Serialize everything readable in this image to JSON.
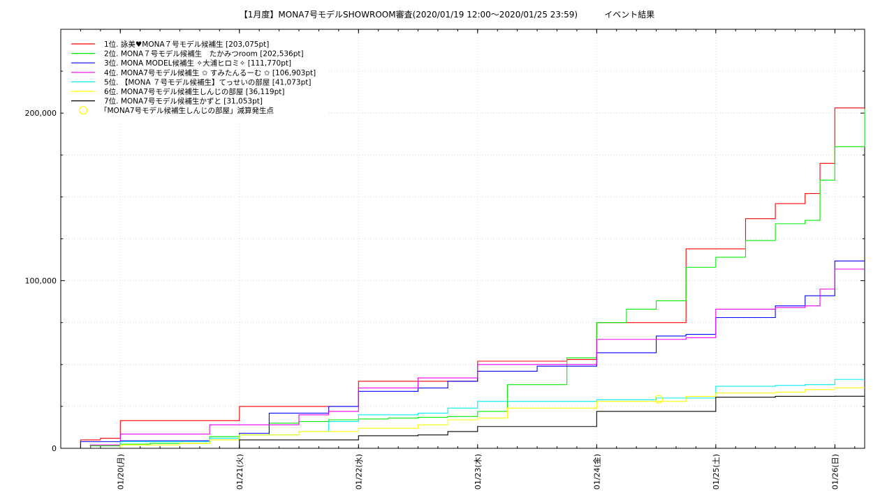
{
  "chart_data": {
    "type": "line",
    "title": "【1月度】MONA7号モデルSHOWROOM審査(2020/01/19 12:00〜2020/01/25 23:59)          イベント結果",
    "xlabel": "",
    "ylabel": "",
    "x_range": [
      "2020-01-19 12:00",
      "2020-01-26 06:00"
    ],
    "ylim": [
      0,
      250000
    ],
    "y_ticks": [
      0,
      100000,
      200000
    ],
    "y_tick_labels": [
      "0",
      "100,000",
      "200,000"
    ],
    "x_ticks": [
      "2020-01-20",
      "2020-01-21",
      "2020-01-22",
      "2020-01-23",
      "2020-01-24",
      "2020-01-25",
      "2020-01-26"
    ],
    "x_tick_labels": [
      "01/20(月)",
      "01/21(火)",
      "01/22(水)",
      "01/23(木)",
      "01/24(金)",
      "01/25(土)",
      "01/26(日)"
    ],
    "grid": true,
    "legend_position": "top-left",
    "series": [
      {
        "name": "1位. 詠美♥MONA７号モデル候補生 [203,075pt]",
        "color": "#ff0000",
        "x": [
          "2020-01-19 12:00",
          "2020-01-19 16:00",
          "2020-01-19 20:00",
          "2020-01-20 00:00",
          "2020-01-20 06:00",
          "2020-01-20 12:00",
          "2020-01-20 18:00",
          "2020-01-21 00:00",
          "2020-01-21 06:00",
          "2020-01-21 12:00",
          "2020-01-21 18:00",
          "2020-01-22 00:00",
          "2020-01-22 06:00",
          "2020-01-22 12:00",
          "2020-01-22 18:00",
          "2020-01-23 00:00",
          "2020-01-23 06:00",
          "2020-01-23 12:00",
          "2020-01-23 18:00",
          "2020-01-24 00:00",
          "2020-01-24 06:00",
          "2020-01-24 12:00",
          "2020-01-24 18:00",
          "2020-01-25 00:00",
          "2020-01-25 06:00",
          "2020-01-25 12:00",
          "2020-01-25 18:00",
          "2020-01-25 21:00",
          "2020-01-25 23:59",
          "2020-01-26 06:00"
        ],
        "y": [
          0,
          5000,
          6000,
          16500,
          16500,
          16500,
          16500,
          25000,
          25000,
          25000,
          25000,
          40000,
          40000,
          40000,
          40000,
          52000,
          52000,
          52000,
          53000,
          75000,
          75000,
          75000,
          119000,
          119000,
          137000,
          146000,
          152000,
          170000,
          203075,
          203075
        ]
      },
      {
        "name": "2位. MONA７号モデル候補生　たかみつroom [202,536pt]",
        "color": "#00ee00",
        "x": [
          "2020-01-19 12:00",
          "2020-01-19 18:00",
          "2020-01-20 00:00",
          "2020-01-20 06:00",
          "2020-01-20 12:00",
          "2020-01-20 18:00",
          "2020-01-21 00:00",
          "2020-01-21 06:00",
          "2020-01-21 12:00",
          "2020-01-21 18:00",
          "2020-01-22 00:00",
          "2020-01-22 06:00",
          "2020-01-22 12:00",
          "2020-01-22 18:00",
          "2020-01-23 00:00",
          "2020-01-23 06:00",
          "2020-01-23 12:00",
          "2020-01-23 18:00",
          "2020-01-24 00:00",
          "2020-01-24 06:00",
          "2020-01-24 12:00",
          "2020-01-24 18:00",
          "2020-01-25 00:00",
          "2020-01-25 06:00",
          "2020-01-25 12:00",
          "2020-01-25 18:00",
          "2020-01-25 21:00",
          "2020-01-25 23:59",
          "2020-01-26 06:00"
        ],
        "y": [
          0,
          1500,
          2500,
          3000,
          3000,
          7000,
          8000,
          15000,
          16000,
          17000,
          17500,
          18000,
          18500,
          19000,
          22000,
          38000,
          38000,
          54000,
          75000,
          83000,
          88000,
          108000,
          114000,
          124000,
          134000,
          136000,
          160000,
          180000,
          202536
        ]
      },
      {
        "name": "3位. MONA MODEL候補生 ✧大浦ヒロミ✧ [111,770pt]",
        "color": "#0000ff",
        "x": [
          "2020-01-19 12:00",
          "2020-01-19 16:00",
          "2020-01-20 00:00",
          "2020-01-20 12:00",
          "2020-01-20 18:00",
          "2020-01-21 00:00",
          "2020-01-21 06:00",
          "2020-01-21 12:00",
          "2020-01-21 18:00",
          "2020-01-22 00:00",
          "2020-01-22 06:00",
          "2020-01-22 12:00",
          "2020-01-22 18:00",
          "2020-01-23 00:00",
          "2020-01-23 06:00",
          "2020-01-23 12:00",
          "2020-01-23 18:00",
          "2020-01-24 00:00",
          "2020-01-24 06:00",
          "2020-01-24 12:00",
          "2020-01-24 18:00",
          "2020-01-25 00:00",
          "2020-01-25 06:00",
          "2020-01-25 12:00",
          "2020-01-25 18:00",
          "2020-01-25 21:00",
          "2020-01-25 23:59",
          "2020-01-26 06:00"
        ],
        "y": [
          0,
          4000,
          4500,
          4500,
          5000,
          9000,
          21000,
          21000,
          25000,
          34000,
          34000,
          36000,
          40000,
          46000,
          46000,
          49000,
          49000,
          57000,
          57000,
          67000,
          68000,
          78000,
          78000,
          85000,
          91000,
          91000,
          111770,
          111770
        ]
      },
      {
        "name": "4位. MONA7号モデル候補生 ✩ すみたんるーむ ✩ [106,903pt]",
        "color": "#ee00ee",
        "x": [
          "2020-01-19 12:00",
          "2020-01-19 18:00",
          "2020-01-20 00:00",
          "2020-01-20 12:00",
          "2020-01-20 18:00",
          "2020-01-21 00:00",
          "2020-01-21 06:00",
          "2020-01-21 12:00",
          "2020-01-21 18:00",
          "2020-01-22 00:00",
          "2020-01-22 06:00",
          "2020-01-22 12:00",
          "2020-01-22 18:00",
          "2020-01-23 00:00",
          "2020-01-23 06:00",
          "2020-01-23 12:00",
          "2020-01-23 18:00",
          "2020-01-24 00:00",
          "2020-01-24 06:00",
          "2020-01-24 12:00",
          "2020-01-24 18:00",
          "2020-01-25 00:00",
          "2020-01-25 06:00",
          "2020-01-25 12:00",
          "2020-01-25 18:00",
          "2020-01-25 21:00",
          "2020-01-25 23:59",
          "2020-01-26 06:00"
        ],
        "y": [
          0,
          2000,
          8500,
          8500,
          14000,
          14000,
          14000,
          20000,
          22000,
          36000,
          36000,
          42000,
          42000,
          50000,
          50000,
          50000,
          50000,
          65000,
          65000,
          65000,
          66000,
          83000,
          83000,
          84000,
          85000,
          95000,
          106903,
          106903
        ]
      },
      {
        "name": "5位. 【MONA ７号モデル候補生】てっせいの部屋 [41,073pt]",
        "color": "#00eeee",
        "x": [
          "2020-01-19 12:00",
          "2020-01-20 00:00",
          "2020-01-20 12:00",
          "2020-01-20 18:00",
          "2020-01-21 00:00",
          "2020-01-21 12:00",
          "2020-01-21 18:00",
          "2020-01-22 00:00",
          "2020-01-22 12:00",
          "2020-01-22 18:00",
          "2020-01-23 00:00",
          "2020-01-23 12:00",
          "2020-01-24 00:00",
          "2020-01-24 12:00",
          "2020-01-24 18:00",
          "2020-01-25 00:00",
          "2020-01-25 12:00",
          "2020-01-25 18:00",
          "2020-01-25 23:59",
          "2020-01-26 06:00"
        ],
        "y": [
          0,
          4000,
          4000,
          6000,
          8000,
          10000,
          16000,
          20000,
          21000,
          24000,
          28000,
          28000,
          29000,
          30000,
          30000,
          37000,
          37500,
          38000,
          41073,
          41073
        ]
      },
      {
        "name": "6位. MONA7号モデル候補生しんじの部屋 [36,119pt]",
        "color": "#ffff00",
        "x": [
          "2020-01-19 12:00",
          "2020-01-20 00:00",
          "2020-01-20 12:00",
          "2020-01-20 18:00",
          "2020-01-21 00:00",
          "2020-01-21 12:00",
          "2020-01-21 18:00",
          "2020-01-22 00:00",
          "2020-01-22 12:00",
          "2020-01-22 18:00",
          "2020-01-23 00:00",
          "2020-01-23 06:00",
          "2020-01-23 12:00",
          "2020-01-24 00:00",
          "2020-01-24 12:00",
          "2020-01-24 18:00",
          "2020-01-25 00:00",
          "2020-01-25 12:00",
          "2020-01-25 18:00",
          "2020-01-25 23:59",
          "2020-01-26 06:00"
        ],
        "y": [
          0,
          2000,
          3000,
          5000,
          8000,
          10000,
          10000,
          12000,
          14000,
          17000,
          18000,
          24000,
          24000,
          28000,
          28000,
          31000,
          33000,
          33500,
          35000,
          36119,
          36119
        ]
      },
      {
        "name": "7位. MONA7号モデル候補生かずと [31,053pt]",
        "color": "#000000",
        "x": [
          "2020-01-19 12:00",
          "2020-01-20 00:00",
          "2020-01-20 18:00",
          "2020-01-21 00:00",
          "2020-01-21 12:00",
          "2020-01-22 00:00",
          "2020-01-22 12:00",
          "2020-01-22 18:00",
          "2020-01-23 00:00",
          "2020-01-23 12:00",
          "2020-01-24 00:00",
          "2020-01-24 12:00",
          "2020-01-24 18:00",
          "2020-01-25 00:00",
          "2020-01-25 12:00",
          "2020-01-25 23:59",
          "2020-01-26 06:00"
        ],
        "y": [
          0,
          0,
          0,
          5000,
          5000,
          7500,
          8000,
          10000,
          13000,
          13000,
          22000,
          22000,
          22000,
          30500,
          31000,
          31053,
          31053
        ]
      }
    ],
    "annotations": [
      {
        "label": "「MONA7号モデル候補生しんじの部屋」減算発生点",
        "color": "#ffff00",
        "marker": "circle",
        "x": "2020-01-24 12:30",
        "y": 28000
      }
    ]
  }
}
